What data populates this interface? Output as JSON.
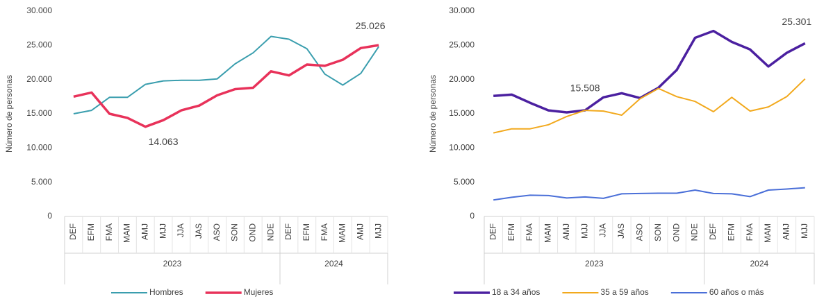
{
  "chart_data": [
    {
      "type": "line",
      "y_label": "Número de personas",
      "categories": [
        "DEF",
        "EFM",
        "FMA",
        "MAM",
        "AMJ",
        "MJJ",
        "JJA",
        "JAS",
        "ASO",
        "SON",
        "OND",
        "NDE",
        "DEF",
        "EFM",
        "FMA",
        "MAM",
        "AMJ",
        "MJJ"
      ],
      "year_labels": [
        "2023",
        null,
        null,
        null,
        null,
        null,
        null,
        null,
        null,
        null,
        null,
        null,
        "2024",
        null,
        null,
        null,
        null,
        null
      ],
      "ylim": [
        0,
        30000
      ],
      "yticks": [
        0,
        {
          "value": 5000,
          "label": "5.000"
        },
        {
          "value": 10000,
          "label": "10.000"
        },
        {
          "value": 15000,
          "label": "15.000"
        },
        {
          "value": 20000,
          "label": "20.000"
        },
        {
          "value": 25000,
          "label": "25.000"
        },
        {
          "value": 30000,
          "label": "30.000"
        }
      ],
      "series": [
        {
          "name": "Hombres",
          "color": "#3a9eae",
          "line_width": 2,
          "values": [
            15000,
            15500,
            17400,
            17400,
            19300,
            19800,
            19900,
            19900,
            20100,
            22300,
            23900,
            26300,
            25900,
            24500,
            20800,
            19200,
            20900,
            24800
          ]
        },
        {
          "name": "Mujeres",
          "color": "#e8325a",
          "line_width": 3.5,
          "values": [
            17500,
            18100,
            15000,
            14400,
            13100,
            14063,
            15500,
            16200,
            17700,
            18600,
            18800,
            21200,
            20600,
            22200,
            22000,
            22900,
            24600,
            25026
          ],
          "value_labels": [
            null,
            null,
            null,
            null,
            null,
            "14.063",
            null,
            null,
            null,
            null,
            null,
            null,
            null,
            null,
            null,
            null,
            null,
            "25.026"
          ]
        }
      ]
    },
    {
      "type": "line",
      "y_label": "Número de personas",
      "categories": [
        "DEF",
        "EFM",
        "FMA",
        "MAM",
        "AMJ",
        "MJJ",
        "JJA",
        "JAS",
        "ASO",
        "SON",
        "OND",
        "NDE",
        "DEF",
        "EFM",
        "FMA",
        "MAM",
        "AMJ",
        "MJJ"
      ],
      "year_labels": [
        "2023",
        null,
        null,
        null,
        null,
        null,
        null,
        null,
        null,
        null,
        null,
        null,
        "2024",
        null,
        null,
        null,
        null,
        null
      ],
      "ylim": [
        0,
        30000
      ],
      "yticks": [
        0,
        {
          "value": 5000,
          "label": "5.000"
        },
        {
          "value": 10000,
          "label": "10.000"
        },
        {
          "value": 15000,
          "label": "15.000"
        },
        {
          "value": 20000,
          "label": "20.000"
        },
        {
          "value": 25000,
          "label": "25.000"
        },
        {
          "value": 30000,
          "label": "30.000"
        }
      ],
      "series": [
        {
          "name": "18 a 34 años",
          "color": "#4b20a0",
          "line_width": 3.5,
          "values": [
            17600,
            17800,
            16600,
            15500,
            15200,
            15508,
            17400,
            18000,
            17300,
            18800,
            21400,
            26100,
            27100,
            25500,
            24400,
            21900,
            23900,
            25301
          ],
          "value_labels": [
            null,
            null,
            null,
            null,
            null,
            "15.508",
            null,
            null,
            null,
            null,
            null,
            null,
            null,
            null,
            null,
            null,
            null,
            "25.301"
          ]
        },
        {
          "name": "35 a 59 años",
          "color": "#f2a91d",
          "line_width": 2,
          "values": [
            12200,
            12800,
            12800,
            13400,
            14600,
            15500,
            15400,
            14800,
            17200,
            18700,
            17500,
            16800,
            15300,
            17400,
            15400,
            16000,
            17500,
            20100
          ]
        },
        {
          "name": "60 años o más",
          "color": "#4a6fd8",
          "line_width": 2,
          "values": [
            2400,
            2800,
            3100,
            3050,
            2700,
            2850,
            2650,
            3300,
            3350,
            3400,
            3400,
            3850,
            3350,
            3300,
            2900,
            3850,
            4000,
            4200
          ]
        }
      ]
    }
  ]
}
